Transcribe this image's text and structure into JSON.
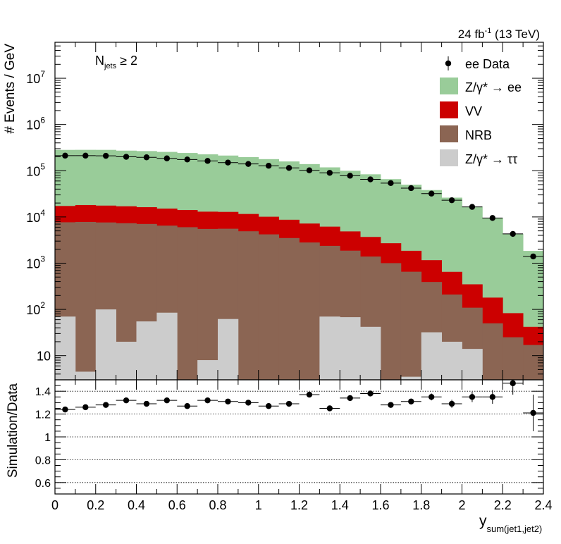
{
  "chart_data": {
    "type": "bar",
    "lumi_label": "24 fb",
    "lumi_sup": "-1",
    "lumi_rest": " (13 TeV)",
    "annotation": "N_jets ≥ 2",
    "annotation_main": "N",
    "annotation_sub": "jets",
    "annotation_rest": " ≥ 2",
    "ylabel": "# Events / GeV",
    "ratio_ylabel": "Simulation/Data",
    "xlabel_main": "y",
    "xlabel_sub": "sum(jet1,jet2)",
    "xlim": [
      0,
      2.4
    ],
    "ylim_log": [
      3,
      60000000
    ],
    "ratio_ylim": [
      0.5,
      1.5
    ],
    "bin_width": 0.1,
    "x_ticks": [
      "0",
      "0.2",
      "0.4",
      "0.6",
      "0.8",
      "1",
      "1.2",
      "1.4",
      "1.6",
      "1.8",
      "2",
      "2.2",
      "2.4"
    ],
    "y_tick_labels": [
      "10",
      "10",
      "10",
      "10",
      "10",
      "10",
      "10"
    ],
    "y_tick_exps": [
      "",
      "2",
      "3",
      "4",
      "5",
      "6",
      "7"
    ],
    "ratio_ticks": [
      "0.6",
      "0.8",
      "1",
      "1.2",
      "1.4"
    ],
    "legend": [
      {
        "label": "ee Data",
        "kind": "data"
      },
      {
        "label": "Z/γ* → ee",
        "kind": "fill",
        "color": "#99cc99"
      },
      {
        "label": "VV",
        "kind": "fill",
        "color": "#cc0000"
      },
      {
        "label": "NRB",
        "kind": "fill",
        "color": "#8b6553"
      },
      {
        "label": "Z/γ* → ττ",
        "kind": "fill",
        "color": "#cccccc"
      }
    ],
    "series": [
      {
        "name": "Z/γ* → ττ",
        "color": "#cccccc",
        "values": [
          70,
          4.5,
          100,
          20,
          55,
          85,
          2,
          8,
          62,
          2,
          2,
          2,
          2,
          70,
          68,
          42,
          2,
          3.5,
          32,
          20,
          14,
          2,
          2,
          2
        ]
      },
      {
        "name": "NRB",
        "color": "#8b6553",
        "values": [
          7600,
          7800,
          7500,
          7300,
          7000,
          6400,
          6000,
          5500,
          5500,
          4900,
          4200,
          3500,
          2800,
          2300,
          1800,
          1350,
          1000,
          650,
          360,
          190,
          95,
          48,
          23,
          15
        ]
      },
      {
        "name": "VV",
        "color": "#cc0000",
        "values": [
          9600,
          10300,
          10000,
          9700,
          9200,
          8700,
          8100,
          7500,
          7300,
          6700,
          5900,
          5200,
          4400,
          3800,
          3000,
          2300,
          1700,
          1200,
          770,
          440,
          240,
          130,
          58,
          25
        ]
      },
      {
        "name": "Z/γ* → ee",
        "color": "#99cc99",
        "values": [
          265000,
          265000,
          265000,
          255000,
          250000,
          240000,
          228000,
          213000,
          200000,
          185000,
          168000,
          150000,
          132000,
          112000,
          95000,
          80000,
          63000,
          48000,
          37000,
          25500,
          16500,
          9400,
          4200,
          1800
        ]
      }
    ],
    "data": {
      "name": "ee Data",
      "x": [
        0.05,
        0.15,
        0.25,
        0.35,
        0.45,
        0.55,
        0.65,
        0.75,
        0.85,
        0.95,
        1.05,
        1.15,
        1.25,
        1.35,
        1.45,
        1.55,
        1.65,
        1.75,
        1.85,
        1.95,
        2.05,
        2.15,
        2.25,
        2.35
      ],
      "y": [
        212000,
        212000,
        210000,
        200000,
        195000,
        185000,
        175000,
        163000,
        150000,
        140000,
        128000,
        115000,
        102000,
        90000,
        78000,
        65000,
        54000,
        42000,
        32000,
        23000,
        16500,
        9500,
        4300,
        1400
      ]
    },
    "ratio": {
      "x": [
        0.05,
        0.15,
        0.25,
        0.35,
        0.45,
        0.55,
        0.65,
        0.75,
        0.85,
        0.95,
        1.05,
        1.15,
        1.25,
        1.35,
        1.45,
        1.55,
        1.65,
        1.75,
        1.85,
        1.95,
        2.05,
        2.15,
        2.25,
        2.35
      ],
      "y": [
        1.24,
        1.26,
        1.28,
        1.32,
        1.29,
        1.32,
        1.27,
        1.32,
        1.31,
        1.3,
        1.27,
        1.29,
        1.37,
        1.25,
        1.34,
        1.38,
        1.28,
        1.31,
        1.35,
        1.29,
        1.35,
        1.35,
        1.47,
        1.21
      ],
      "err": [
        0.01,
        0.01,
        0.01,
        0.01,
        0.01,
        0.01,
        0.01,
        0.01,
        0.01,
        0.01,
        0.01,
        0.01,
        0.01,
        0.01,
        0.015,
        0.015,
        0.02,
        0.025,
        0.03,
        0.035,
        0.045,
        0.06,
        0.1,
        0.16
      ]
    }
  }
}
